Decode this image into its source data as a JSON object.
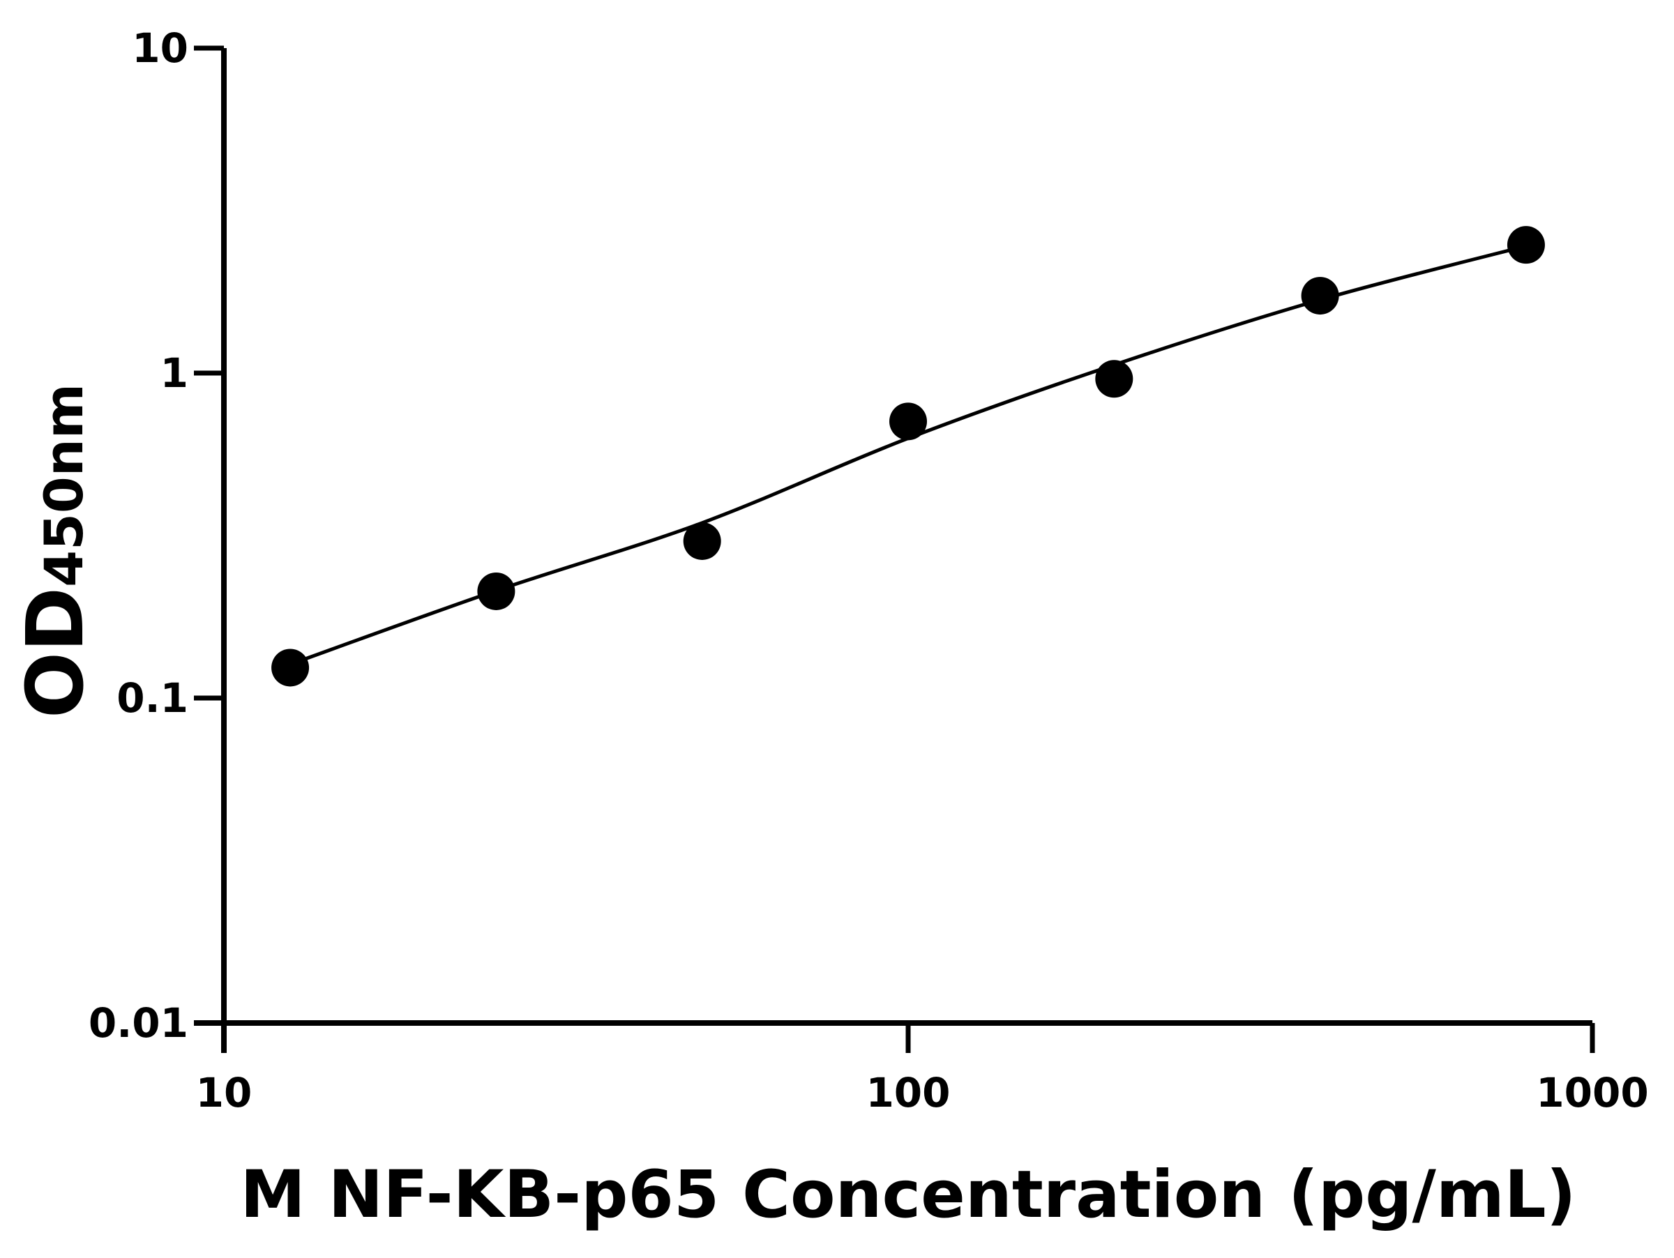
{
  "chart_data": {
    "type": "scatter",
    "x_label": "M NF-KB-p65 Concentration (pg/mL)",
    "y_label": {
      "main": "OD",
      "sub": "450nm"
    },
    "x_log": true,
    "y_log": true,
    "xlim": [
      10,
      1000
    ],
    "xticks": [
      10,
      100,
      1000
    ],
    "ylim": [
      0.01,
      10
    ],
    "yticks": [
      0.01,
      0.1,
      1,
      10
    ],
    "series": [
      {
        "kind": "points",
        "color": "#000000",
        "x": [
          12.5,
          25,
          50,
          100,
          200,
          400,
          800
        ],
        "values": [
          0.124,
          0.213,
          0.304,
          0.71,
          0.96,
          1.73,
          2.48
        ]
      },
      {
        "kind": "fit",
        "color": "#000000",
        "x": [
          12.5,
          25,
          50,
          100,
          200,
          400,
          800
        ],
        "values": [
          0.127,
          0.214,
          0.346,
          0.63,
          1.06,
          1.68,
          2.46
        ]
      }
    ]
  }
}
